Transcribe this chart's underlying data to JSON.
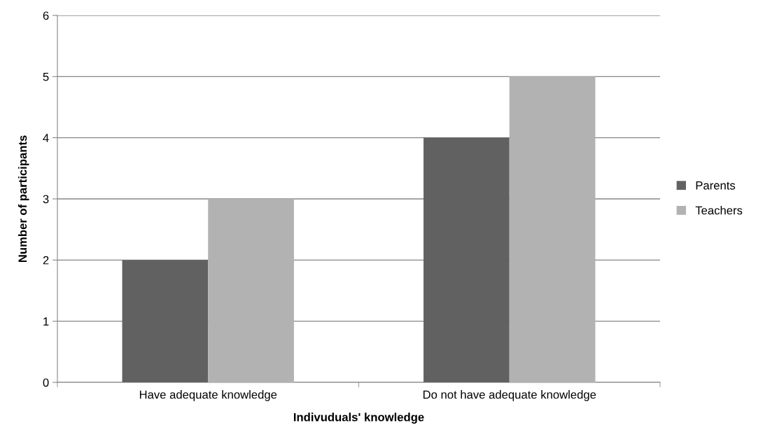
{
  "chart_data": {
    "type": "bar",
    "xlabel": "Indivuduals' knowledge",
    "ylabel": "Number of participants",
    "categories": [
      "Have adequate knowledge",
      "Do not have adequate knowledge"
    ],
    "series": [
      {
        "name": "Parents",
        "color": "#616161",
        "values": [
          2,
          4
        ]
      },
      {
        "name": "Teachers",
        "color": "#b2b2b2",
        "values": [
          3,
          5
        ]
      }
    ],
    "ylim": [
      0,
      6
    ],
    "yticks": [
      0,
      1,
      2,
      3,
      4,
      5,
      6
    ],
    "grid": "y",
    "legend": "right"
  }
}
